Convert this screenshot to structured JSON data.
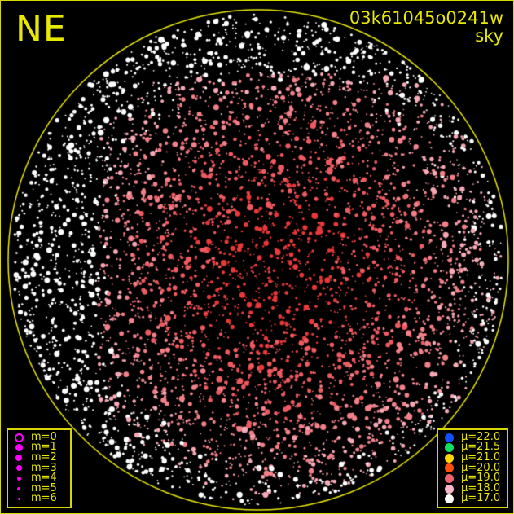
{
  "direction_label": "NE",
  "image_id": "03k61045o0241w",
  "image_type": "sky",
  "magnitude_legend": [
    {
      "label": "m=0",
      "style": "ring"
    },
    {
      "label": "m=1",
      "style": "filled"
    },
    {
      "label": "m=2",
      "style": "filled"
    },
    {
      "label": "m=3",
      "style": "filled"
    },
    {
      "label": "m=4",
      "style": "filled"
    },
    {
      "label": "m=5",
      "style": "filled"
    },
    {
      "label": "m=6",
      "style": "filled"
    }
  ],
  "magnitude_color": "#ff00ff",
  "brightness_legend": [
    {
      "label": "μ=22.0",
      "color": "#1050ff"
    },
    {
      "label": "μ=21.5",
      "color": "#10e060"
    },
    {
      "label": "μ=21.0",
      "color": "#ffd800"
    },
    {
      "label": "μ=20.0",
      "color": "#ff5010"
    },
    {
      "label": "μ=19.0",
      "color": "#f06070"
    },
    {
      "label": "μ=18.0",
      "color": "#f8b8c8"
    },
    {
      "label": "μ=17.0",
      "color": "#ffffff"
    }
  ],
  "frame_color": "#e8e800"
}
